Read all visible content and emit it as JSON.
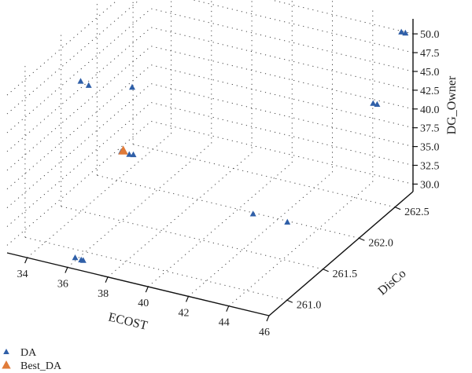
{
  "chart_data": {
    "type": "scatter",
    "projection": "3d",
    "title": "",
    "axes": {
      "x": {
        "label": "ECOST",
        "ticks": [
          "34",
          "36",
          "38",
          "40",
          "42",
          "44",
          "46"
        ],
        "range": [
          33,
          46
        ]
      },
      "y": {
        "label": "DisCo",
        "ticks": [
          "261.0",
          "261.5",
          "262.0",
          "262.5"
        ],
        "range": [
          260.75,
          262.75
        ]
      },
      "z": {
        "label": "DG_Owner",
        "ticks": [
          "30.0",
          "32.5",
          "35.0",
          "37.5",
          "40.0",
          "42.5",
          "45.0",
          "47.5",
          "50.0"
        ],
        "range": [
          29,
          52
        ]
      }
    },
    "grid": true,
    "legend": {
      "placement": "bottom-left"
    },
    "colors": {
      "DA": "#2f5fa8",
      "Best_DA": "#e07b39"
    },
    "series": [
      {
        "name": "DA",
        "marker": "triangle",
        "points": [
          {
            "x": 35.4,
            "y": 261.1,
            "z": 50.5
          },
          {
            "x": 35.8,
            "y": 261.1,
            "z": 50.2
          },
          {
            "x": 37.6,
            "y": 261.2,
            "z": 50.3
          },
          {
            "x": 45.6,
            "y": 262.7,
            "z": 50.4
          },
          {
            "x": 45.8,
            "y": 262.7,
            "z": 50.4
          },
          {
            "x": 36.7,
            "y": 261.3,
            "z": 40.3
          },
          {
            "x": 37.1,
            "y": 261.3,
            "z": 40.2
          },
          {
            "x": 37.3,
            "y": 261.3,
            "z": 40.3
          },
          {
            "x": 44.2,
            "y": 262.7,
            "z": 40.0
          },
          {
            "x": 44.4,
            "y": 262.7,
            "z": 40.0
          },
          {
            "x": 36.2,
            "y": 260.8,
            "z": 30.0
          },
          {
            "x": 36.5,
            "y": 260.8,
            "z": 29.9
          },
          {
            "x": 36.6,
            "y": 260.8,
            "z": 29.9
          },
          {
            "x": 41.1,
            "y": 261.9,
            "z": 29.9
          },
          {
            "x": 42.8,
            "y": 261.9,
            "z": 29.9
          }
        ]
      },
      {
        "name": "Best_DA",
        "marker": "triangle",
        "points": [
          {
            "x": 36.8,
            "y": 261.3,
            "z": 40.5
          }
        ]
      }
    ]
  }
}
